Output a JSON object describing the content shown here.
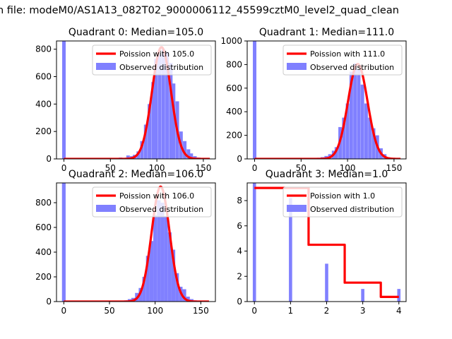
{
  "figure": {
    "suptitle": "n file: modeM0/AS1A13_082T02_9000006112_45599cztM0_level2_quad_clean"
  },
  "colors": {
    "hist": "#8080ff",
    "poisson": "#ff0000",
    "axis": "#000000",
    "background": "#ffffff"
  },
  "chart_data": [
    {
      "type": "bar",
      "title": "Quadrant 0: Median=105.0",
      "xlim": [
        -8,
        163
      ],
      "ylim": [
        0,
        860
      ],
      "xticks": [
        0,
        50,
        100,
        150
      ],
      "yticks": [
        0,
        200,
        400,
        600,
        800
      ],
      "legend": {
        "placement": "top-right",
        "entries": [
          "Poission with 105.0",
          "Observed distribution"
        ]
      },
      "series": [
        {
          "name": "Observed distribution",
          "type": "histogram",
          "bin_width": 3.8,
          "x": [
            0,
            57,
            61,
            65,
            69,
            73,
            76,
            80,
            84,
            88,
            92,
            96,
            99,
            103,
            107,
            111,
            115,
            118,
            122,
            126,
            130,
            134,
            137,
            141,
            145,
            149
          ],
          "values": [
            860,
            5,
            10,
            8,
            25,
            20,
            30,
            55,
            130,
            250,
            400,
            560,
            730,
            760,
            800,
            780,
            700,
            550,
            420,
            200,
            130,
            70,
            40,
            20,
            10,
            4
          ]
        },
        {
          "name": "Poission with 105.0",
          "type": "line",
          "peak": 105,
          "amplitude": 815,
          "sigma": 10.2,
          "x_range": [
            0,
            157
          ]
        }
      ]
    },
    {
      "type": "bar",
      "title": "Quadrant 1: Median=111.0",
      "xlim": [
        -8,
        163
      ],
      "ylim": [
        0,
        1000
      ],
      "xticks": [
        0,
        50,
        100,
        150
      ],
      "yticks": [
        0,
        200,
        400,
        600,
        800,
        1000
      ],
      "legend": {
        "placement": "top-right",
        "entries": [
          "Poission with 111.0",
          "Observed distribution"
        ]
      },
      "series": [
        {
          "name": "Observed distribution",
          "type": "histogram",
          "bin_width": 3.8,
          "x": [
            0,
            65,
            69,
            73,
            77,
            81,
            85,
            88,
            92,
            96,
            100,
            104,
            108,
            112,
            116,
            120,
            124,
            128,
            132,
            136,
            140,
            144
          ],
          "values": [
            1000,
            5,
            10,
            15,
            25,
            40,
            70,
            100,
            270,
            350,
            470,
            740,
            810,
            760,
            630,
            470,
            350,
            260,
            200,
            90,
            40,
            15
          ]
        },
        {
          "name": "Poission with 111.0",
          "type": "line",
          "peak": 111,
          "amplitude": 805,
          "sigma": 10.5,
          "x_range": [
            0,
            157
          ]
        }
      ]
    },
    {
      "type": "bar",
      "title": "Quadrant 2: Median=106.0",
      "xlim": [
        -8,
        166
      ],
      "ylim": [
        0,
        960
      ],
      "xticks": [
        0,
        50,
        100,
        150
      ],
      "yticks": [
        0,
        200,
        400,
        600,
        800
      ],
      "legend": {
        "placement": "top-right",
        "entries": [
          "Poission with 106.0",
          "Observed distribution"
        ]
      },
      "series": [
        {
          "name": "Observed distribution",
          "type": "histogram",
          "bin_width": 4.0,
          "x": [
            0,
            60,
            64,
            68,
            72,
            76,
            80,
            84,
            88,
            92,
            96,
            100,
            104,
            108,
            112,
            116,
            120,
            124,
            128,
            132,
            136,
            140,
            144,
            148
          ],
          "values": [
            960,
            5,
            8,
            10,
            20,
            30,
            70,
            110,
            200,
            370,
            490,
            700,
            820,
            800,
            690,
            560,
            420,
            230,
            120,
            100,
            40,
            20,
            10,
            5
          ]
        },
        {
          "name": "Poission with 106.0",
          "type": "line",
          "peak": 106,
          "amplitude": 930,
          "sigma": 9.8,
          "x_range": [
            0,
            159
          ]
        }
      ]
    },
    {
      "type": "bar",
      "title": "Quadrant 3: Median=1.0",
      "xlim": [
        -0.2,
        4.2
      ],
      "ylim": [
        0,
        9.4
      ],
      "xticks": [
        0,
        1,
        2,
        3,
        4
      ],
      "yticks": [
        0,
        2,
        4,
        6,
        8
      ],
      "legend": {
        "placement": "top-right",
        "entries": [
          "Poission with 1.0",
          "Observed distribution"
        ]
      },
      "series": [
        {
          "name": "Observed distribution",
          "type": "histogram",
          "bin_width": 0.09,
          "x": [
            0,
            1,
            2,
            3,
            4
          ],
          "values": [
            9.4,
            8.2,
            3.0,
            1.0,
            1.0
          ]
        },
        {
          "name": "Poission with 1.0",
          "type": "step",
          "x": [
            0,
            1.5,
            1.5,
            2.5,
            2.5,
            3.5,
            3.5,
            4
          ],
          "y": [
            9.0,
            9.0,
            4.5,
            4.5,
            1.5,
            1.5,
            0.37,
            0.37
          ]
        }
      ]
    }
  ]
}
